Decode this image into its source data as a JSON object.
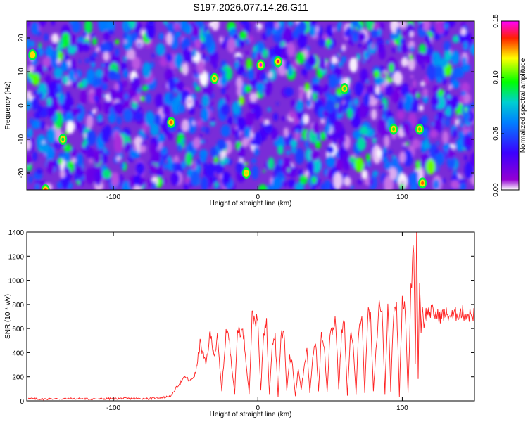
{
  "chart_data": [
    {
      "type": "heatmap",
      "title": "S197.2026.077.14.26.G11",
      "xlabel": "Height of straight line (km)",
      "ylabel": "Frequency (Hz)",
      "xlim": [
        -160,
        150
      ],
      "ylim": [
        -25,
        25
      ],
      "xticks": [
        -100,
        0,
        100
      ],
      "yticks": [
        -20,
        -10,
        0,
        10,
        20
      ],
      "colorbar": {
        "label": "Normalized spectral amplitude",
        "range": [
          0,
          0.15
        ],
        "ticks": [
          "0.00",
          "0.05",
          "0.10",
          "0.15"
        ],
        "colormap": [
          "#ffffff",
          "#9400d3",
          "#0000ff",
          "#00bfff",
          "#00ff00",
          "#ffff00",
          "#ff0000",
          "#ff00ff"
        ]
      },
      "hotspots": [
        {
          "x": 2,
          "y": 12,
          "value": 0.15
        },
        {
          "x": 14,
          "y": 13,
          "value": 0.14
        },
        {
          "x": -60,
          "y": -5,
          "value": 0.13
        },
        {
          "x": -156,
          "y": 15,
          "value": 0.12
        },
        {
          "x": -147,
          "y": -25,
          "value": 0.13
        },
        {
          "x": 114,
          "y": -23,
          "value": 0.13
        },
        {
          "x": -8,
          "y": -20,
          "value": 0.11
        },
        {
          "x": 94,
          "y": -7,
          "value": 0.1
        },
        {
          "x": 112,
          "y": -7,
          "value": 0.1
        },
        {
          "x": -135,
          "y": -10,
          "value": 0.09
        },
        {
          "x": 60,
          "y": 5,
          "value": 0.09
        },
        {
          "x": -30,
          "y": 8,
          "value": 0.09
        }
      ]
    },
    {
      "type": "line",
      "xlabel": "Height of straight line (km)",
      "ylabel": "SNR (10 * v/v)",
      "xlim": [
        -160,
        150
      ],
      "ylim": [
        0,
        1400
      ],
      "xticks": [
        -100,
        0,
        100
      ],
      "yticks": [
        0,
        200,
        400,
        600,
        800,
        1000,
        1200,
        1400
      ],
      "series": [
        {
          "name": "SNR",
          "color": "#ff2020",
          "x": [
            -160,
            -150,
            -130,
            -110,
            -90,
            -75,
            -70,
            -65,
            -60,
            -56,
            -50,
            -47,
            -43,
            -40,
            -36,
            -33,
            -30,
            -28,
            -25,
            -22,
            -20,
            -16,
            -14,
            -10,
            -6,
            -4,
            0,
            2,
            4,
            6,
            8,
            10,
            12,
            14,
            16,
            18,
            20,
            22,
            24,
            26,
            28,
            30,
            34,
            36,
            38,
            40,
            42,
            44,
            46,
            48,
            50,
            52,
            54,
            56,
            58,
            60,
            62,
            64,
            66,
            68,
            70,
            72,
            74,
            76,
            78,
            80,
            84,
            86,
            88,
            90,
            92,
            94,
            96,
            98,
            100,
            102,
            104,
            106,
            108,
            109,
            110,
            111,
            112,
            113,
            114,
            115,
            116,
            120,
            125,
            130,
            135,
            140,
            145,
            150
          ],
          "y": [
            20,
            15,
            18,
            16,
            20,
            18,
            25,
            30,
            40,
            120,
            200,
            160,
            230,
            480,
            300,
            560,
            380,
            520,
            80,
            580,
            520,
            60,
            600,
            560,
            60,
            700,
            650,
            80,
            580,
            640,
            60,
            500,
            540,
            40,
            520,
            600,
            80,
            360,
            300,
            40,
            280,
            100,
            420,
            60,
            380,
            500,
            80,
            560,
            440,
            70,
            580,
            600,
            660,
            90,
            560,
            640,
            40,
            540,
            500,
            60,
            620,
            700,
            60,
            720,
            690,
            80,
            800,
            760,
            60,
            820,
            80,
            760,
            820,
            40,
            860,
            800,
            60,
            900,
            1320,
            300,
            1400,
            200,
            1000,
            600,
            760,
            640,
            720,
            740,
            700,
            720,
            700,
            740,
            710,
            720
          ]
        }
      ]
    }
  ]
}
